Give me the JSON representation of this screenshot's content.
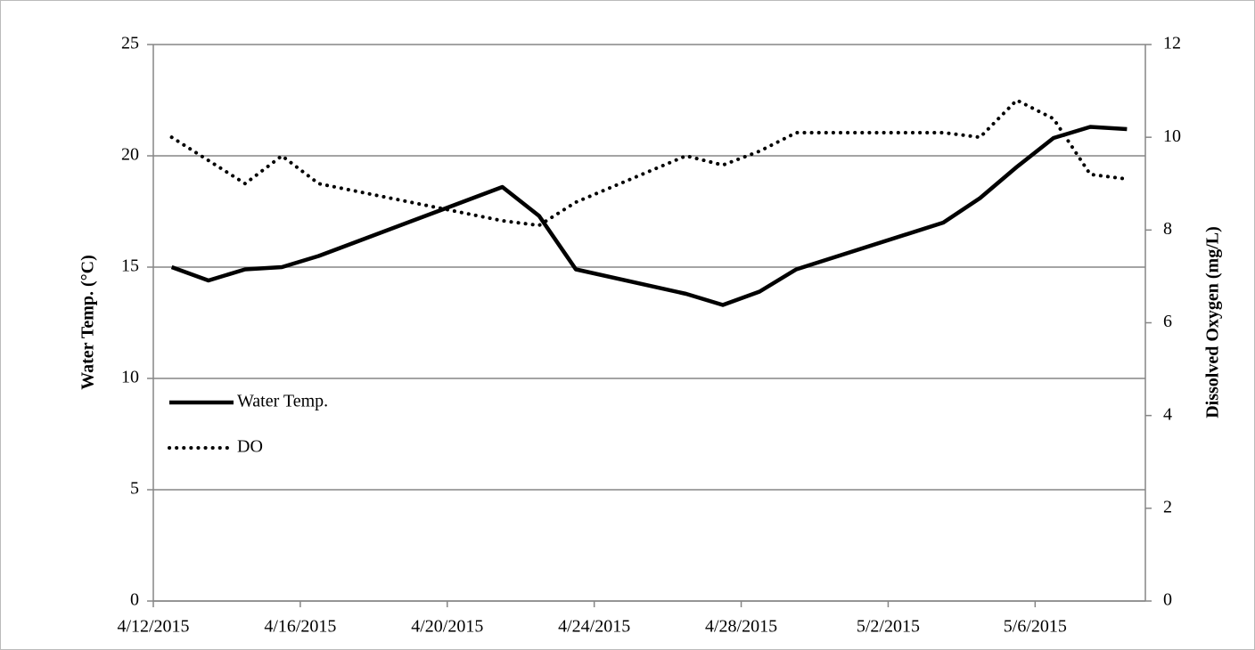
{
  "chart_data": {
    "type": "line",
    "y_label": "Water Temp. (°C)",
    "y2_label": "Dissolved Oxygen (mg/L)",
    "x": [
      "4/12/2015",
      "4/13/2015",
      "4/14/2015",
      "4/15/2015",
      "4/16/2015",
      "4/21/2015",
      "4/22/2015",
      "4/23/2015",
      "4/26/2015",
      "4/27/2015",
      "4/28/2015",
      "4/29/2015",
      "5/3/2015",
      "5/4/2015",
      "5/5/2015",
      "5/6/2015",
      "5/7/2015",
      "5/8/2015"
    ],
    "xlim": [
      "4/12/2015",
      "5/8/2015"
    ],
    "xticks": [
      "4/12/2015",
      "4/16/2015",
      "4/20/2015",
      "4/24/2015",
      "4/28/2015",
      "5/2/2015",
      "5/6/2015"
    ],
    "ylim": [
      0,
      25
    ],
    "yticks": [
      0,
      5,
      10,
      15,
      20,
      25
    ],
    "y2lim": [
      0,
      12
    ],
    "y2ticks": [
      0,
      2,
      4,
      6,
      8,
      10,
      12
    ],
    "grid": true,
    "legend": "left",
    "series": [
      {
        "name": "Water Temp.",
        "color": "#000000",
        "style": "solid",
        "values": [
          15.0,
          14.4,
          14.9,
          15.0,
          15.5,
          18.6,
          17.3,
          14.9,
          13.8,
          13.3,
          13.9,
          14.9,
          17.0,
          18.1,
          19.5,
          20.8,
          21.3,
          21.2
        ]
      },
      {
        "name": "DO",
        "color": "#000000",
        "style": "dotted",
        "axis": "y2",
        "values": [
          10.0,
          9.5,
          9.0,
          9.6,
          9.0,
          8.2,
          8.1,
          8.6,
          9.6,
          9.4,
          9.7,
          10.1,
          10.1,
          10.0,
          10.8,
          10.4,
          9.2,
          9.1
        ]
      }
    ]
  }
}
